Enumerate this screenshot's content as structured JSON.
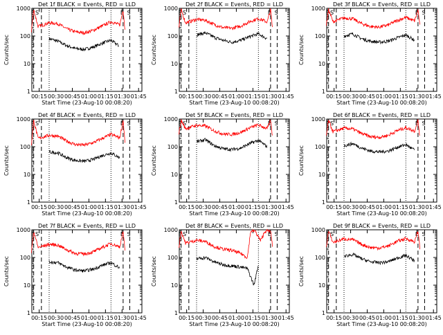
{
  "chart_data": [
    {
      "type": "line",
      "title": "Det 1f BLACK = Events, RED = LLD",
      "ylabel": "Counts/sec",
      "xlabel": "Start Time (23-Aug-10 00:08:20)",
      "x_ticks": [
        "00:15",
        "00:30",
        "00:45",
        "01:00",
        "01:15",
        "01:30",
        "01:45"
      ],
      "y_ticks": [
        "1",
        "10",
        "100",
        "1000"
      ],
      "y_scale": "log",
      "ylim": [
        1,
        1000
      ],
      "markers": [
        "E",
        "S",
        "E",
        "S"
      ],
      "series": [
        {
          "color": "#000000",
          "x": [
            "00:24",
            "00:32",
            "00:40",
            "00:48",
            "00:56",
            "01:04",
            "01:12",
            "01:20",
            "01:27"
          ],
          "values": [
            80,
            65,
            45,
            35,
            33,
            40,
            55,
            70,
            45
          ]
        },
        {
          "color": "#ff0000",
          "x": [
            "00:08",
            "00:10",
            "00:14",
            "00:24",
            "00:32",
            "00:40",
            "00:48",
            "00:56",
            "01:04",
            "01:12",
            "01:20",
            "01:28",
            "01:31",
            "01:33"
          ],
          "values": [
            150,
            900,
            220,
            300,
            280,
            180,
            140,
            130,
            160,
            230,
            330,
            250,
            900,
            120
          ]
        }
      ]
    },
    {
      "type": "line",
      "title": "Det 2f BLACK = Events, RED = LLD",
      "ylabel": "Counts/sec",
      "xlabel": "Start Time (23-Aug-10 00:08:20)",
      "x_ticks": [
        "00:15",
        "00:30",
        "00:45",
        "01:00",
        "01:15",
        "01:30",
        "01:45"
      ],
      "y_ticks": [
        "1",
        "10",
        "100",
        "1000"
      ],
      "y_scale": "log",
      "ylim": [
        1,
        1000
      ],
      "markers": [
        "E",
        "S",
        "E",
        "S"
      ],
      "series": [
        {
          "color": "#000000",
          "x": [
            "00:24",
            "00:32",
            "00:40",
            "00:48",
            "00:56",
            "01:04",
            "01:12",
            "01:20",
            "01:28"
          ],
          "values": [
            110,
            130,
            90,
            70,
            60,
            70,
            95,
            120,
            80
          ]
        },
        {
          "color": "#ff0000",
          "x": [
            "00:08",
            "00:10",
            "00:14",
            "00:24",
            "00:32",
            "00:40",
            "00:48",
            "00:56",
            "01:04",
            "01:12",
            "01:20",
            "01:28",
            "01:31",
            "01:33"
          ],
          "values": [
            200,
            900,
            300,
            400,
            370,
            260,
            200,
            190,
            230,
            330,
            430,
            320,
            900,
            150
          ]
        }
      ]
    },
    {
      "type": "line",
      "title": "Det 3f BLACK = Events, RED = LLD",
      "ylabel": "Counts/sec",
      "xlabel": "Start Time (23-Aug-10 00:08:20)",
      "x_ticks": [
        "00:15",
        "00:30",
        "00:45",
        "01:00",
        "01:15",
        "01:30",
        "01:45"
      ],
      "y_ticks": [
        "1",
        "10",
        "100",
        "1000"
      ],
      "y_scale": "log",
      "ylim": [
        1,
        1000
      ],
      "markers": [
        "E",
        "S",
        "E",
        "S"
      ],
      "series": [
        {
          "color": "#000000",
          "x": [
            "00:24",
            "00:32",
            "00:40",
            "00:48",
            "00:56",
            "01:04",
            "01:12",
            "01:20",
            "01:28"
          ],
          "values": [
            100,
            120,
            80,
            65,
            60,
            65,
            85,
            110,
            70
          ]
        },
        {
          "color": "#ff0000",
          "x": [
            "00:08",
            "00:10",
            "00:14",
            "00:24",
            "00:32",
            "00:40",
            "00:48",
            "00:56",
            "01:04",
            "01:12",
            "01:20",
            "01:28",
            "01:31",
            "01:33"
          ],
          "values": [
            250,
            900,
            330,
            450,
            420,
            280,
            220,
            210,
            250,
            360,
            470,
            350,
            900,
            180
          ]
        }
      ]
    },
    {
      "type": "line",
      "title": "Det 4f BLACK = Events, RED = LLD",
      "ylabel": "Counts/sec",
      "xlabel": "Start Time (23-Aug-10 00:08:20)",
      "x_ticks": [
        "00:15",
        "00:30",
        "00:45",
        "01:00",
        "01:15",
        "01:30",
        "01:45"
      ],
      "y_ticks": [
        "1",
        "10",
        "100",
        "1000"
      ],
      "y_scale": "log",
      "ylim": [
        1,
        1000
      ],
      "markers": [
        "E",
        "S",
        "E",
        "S"
      ],
      "series": [
        {
          "color": "#000000",
          "x": [
            "00:24",
            "00:32",
            "00:40",
            "00:48",
            "00:56",
            "01:04",
            "01:12",
            "01:20",
            "01:28"
          ],
          "values": [
            65,
            60,
            40,
            32,
            30,
            35,
            48,
            60,
            40
          ]
        },
        {
          "color": "#ff0000",
          "x": [
            "00:08",
            "00:10",
            "00:14",
            "00:24",
            "00:32",
            "00:40",
            "00:48",
            "00:56",
            "01:04",
            "01:12",
            "01:20",
            "01:28",
            "01:31",
            "01:33"
          ],
          "values": [
            120,
            900,
            200,
            260,
            240,
            160,
            120,
            115,
            140,
            200,
            280,
            210,
            900,
            110
          ]
        }
      ]
    },
    {
      "type": "line",
      "title": "Det 5f BLACK = Events, RED = LLD",
      "ylabel": "Counts/sec",
      "xlabel": "Start Time (23-Aug-10 00:08:20)",
      "x_ticks": [
        "00:15",
        "00:30",
        "00:45",
        "01:00",
        "01:15",
        "01:30",
        "01:45"
      ],
      "y_ticks": [
        "1",
        "10",
        "100",
        "1000"
      ],
      "y_scale": "log",
      "ylim": [
        1,
        1000
      ],
      "markers": [
        "E",
        "S",
        "E",
        "S"
      ],
      "series": [
        {
          "color": "#000000",
          "x": [
            "00:24",
            "00:32",
            "00:40",
            "00:48",
            "00:56",
            "01:04",
            "01:12",
            "01:20",
            "01:28"
          ],
          "values": [
            150,
            180,
            110,
            85,
            80,
            90,
            130,
            170,
            100
          ]
        },
        {
          "color": "#ff0000",
          "x": [
            "00:08",
            "00:10",
            "00:14",
            "00:24",
            "00:32",
            "00:40",
            "00:48",
            "00:56",
            "01:04",
            "01:12",
            "01:20",
            "01:28",
            "01:31",
            "01:33"
          ],
          "values": [
            300,
            900,
            450,
            600,
            560,
            380,
            290,
            280,
            330,
            480,
            620,
            450,
            900,
            200
          ]
        }
      ]
    },
    {
      "type": "line",
      "title": "Det 6f BLACK = Events, RED = LLD",
      "ylabel": "Counts/sec",
      "xlabel": "Start Time (23-Aug-10 00:08:20)",
      "x_ticks": [
        "00:15",
        "00:30",
        "00:45",
        "01:00",
        "01:15",
        "01:30",
        "01:45"
      ],
      "y_ticks": [
        "1",
        "10",
        "100",
        "1000"
      ],
      "y_scale": "log",
      "ylim": [
        1,
        1000
      ],
      "markers": [
        "E",
        "S",
        "E",
        "S"
      ],
      "series": [
        {
          "color": "#000000",
          "x": [
            "00:24",
            "00:32",
            "00:40",
            "00:48",
            "00:56",
            "01:04",
            "01:12",
            "01:20",
            "01:28"
          ],
          "values": [
            110,
            130,
            90,
            70,
            65,
            70,
            95,
            120,
            75
          ]
        },
        {
          "color": "#ff0000",
          "x": [
            "00:08",
            "00:10",
            "00:14",
            "00:24",
            "00:32",
            "00:40",
            "00:48",
            "00:56",
            "01:04",
            "01:12",
            "01:20",
            "01:28",
            "01:31",
            "01:33"
          ],
          "values": [
            250,
            900,
            350,
            470,
            440,
            300,
            230,
            220,
            260,
            380,
            490,
            370,
            900,
            180
          ]
        }
      ]
    },
    {
      "type": "line",
      "title": "Det 7f BLACK = Events, RED = LLD",
      "ylabel": "Counts/sec",
      "xlabel": "Start Time (23-Aug-10 00:08:20)",
      "x_ticks": [
        "00:15",
        "00:30",
        "00:45",
        "01:00",
        "01:15",
        "01:30",
        "01:45"
      ],
      "y_ticks": [
        "1",
        "10",
        "100",
        "1000"
      ],
      "y_scale": "log",
      "ylim": [
        1,
        1000
      ],
      "markers": [
        "E",
        "S",
        "E",
        "S"
      ],
      "series": [
        {
          "color": "#000000",
          "x": [
            "00:24",
            "00:32",
            "00:40",
            "00:48",
            "00:56",
            "01:04",
            "01:12",
            "01:20",
            "01:28"
          ],
          "values": [
            70,
            65,
            45,
            35,
            33,
            38,
            52,
            65,
            42
          ]
        },
        {
          "color": "#ff0000",
          "x": [
            "00:08",
            "00:10",
            "00:14",
            "00:24",
            "00:32",
            "00:40",
            "00:48",
            "00:56",
            "01:04",
            "01:12",
            "01:20",
            "01:28",
            "01:31",
            "01:33"
          ],
          "values": [
            150,
            900,
            230,
            300,
            280,
            190,
            140,
            135,
            160,
            230,
            320,
            240,
            900,
            120
          ]
        }
      ]
    },
    {
      "type": "line",
      "title": "Det 8f BLACK = Events, RED = LLD",
      "ylabel": "Counts/sec",
      "xlabel": "Start Time (23-Aug-10 00:08:20)",
      "x_ticks": [
        "00:15",
        "00:30",
        "00:45",
        "01:00",
        "01:15",
        "01:30",
        "01:45"
      ],
      "y_ticks": [
        "1",
        "10",
        "100",
        "1000"
      ],
      "y_scale": "log",
      "ylim": [
        1,
        1000
      ],
      "markers": [
        "E",
        "S",
        "E",
        "S"
      ],
      "series": [
        {
          "color": "#000000",
          "x": [
            "00:24",
            "00:32",
            "00:40",
            "00:48",
            "00:56",
            "01:04",
            "01:10",
            "01:16",
            "01:20"
          ],
          "values": [
            90,
            100,
            70,
            55,
            50,
            45,
            40,
            10,
            55
          ]
        },
        {
          "color": "#ff0000",
          "x": [
            "00:08",
            "00:10",
            "00:14",
            "00:24",
            "00:32",
            "00:40",
            "00:48",
            "00:56",
            "01:04",
            "01:10",
            "01:13",
            "01:17",
            "01:22",
            "01:26",
            "01:31",
            "01:33"
          ],
          "values": [
            220,
            900,
            330,
            420,
            380,
            250,
            200,
            180,
            140,
            100,
            900,
            900,
            400,
            900,
            900,
            220
          ]
        }
      ]
    },
    {
      "type": "line",
      "title": "Det 9f BLACK = Events, RED = LLD",
      "ylabel": "Counts/sec",
      "xlabel": "Start Time (23-Aug-10 00:08:20)",
      "x_ticks": [
        "00:15",
        "00:30",
        "00:45",
        "01:00",
        "01:15",
        "01:30",
        "01:45"
      ],
      "y_ticks": [
        "1",
        "10",
        "100",
        "1000"
      ],
      "y_scale": "log",
      "ylim": [
        1,
        1000
      ],
      "markers": [
        "E",
        "S",
        "E",
        "S"
      ],
      "series": [
        {
          "color": "#000000",
          "x": [
            "00:24",
            "00:32",
            "00:40",
            "00:48",
            "00:56",
            "01:04",
            "01:12",
            "01:20",
            "01:28"
          ],
          "values": [
            110,
            130,
            90,
            70,
            65,
            70,
            95,
            120,
            75
          ]
        },
        {
          "color": "#ff0000",
          "x": [
            "00:08",
            "00:10",
            "00:14",
            "00:24",
            "00:32",
            "00:40",
            "00:48",
            "00:56",
            "01:04",
            "01:12",
            "01:20",
            "01:28",
            "01:31",
            "01:33"
          ],
          "values": [
            250,
            900,
            350,
            470,
            440,
            300,
            230,
            220,
            260,
            380,
            490,
            370,
            900,
            180
          ]
        }
      ]
    }
  ]
}
